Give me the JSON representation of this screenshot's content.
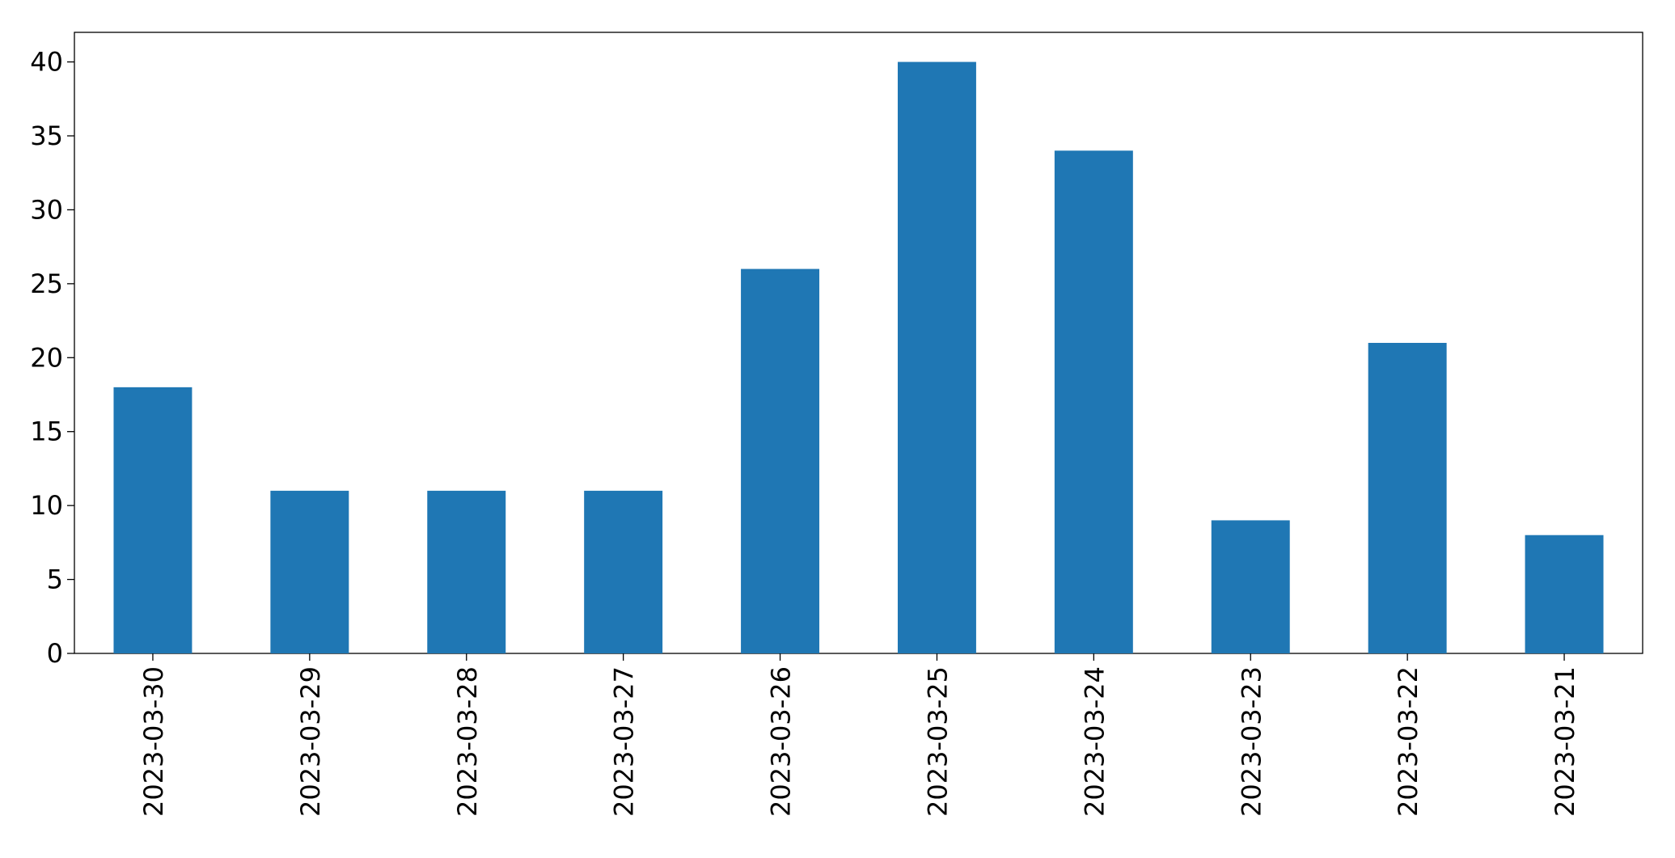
{
  "chart_data": {
    "type": "bar",
    "categories": [
      "2023-03-30",
      "2023-03-29",
      "2023-03-28",
      "2023-03-27",
      "2023-03-26",
      "2023-03-25",
      "2023-03-24",
      "2023-03-23",
      "2023-03-22",
      "2023-03-21"
    ],
    "values": [
      18,
      11,
      11,
      11,
      26,
      40,
      34,
      9,
      21,
      8
    ],
    "color": "#1f77b4",
    "ylim": [
      0,
      42
    ],
    "yticks": [
      0,
      5,
      10,
      15,
      20,
      25,
      30,
      35,
      40
    ],
    "grid": false
  }
}
